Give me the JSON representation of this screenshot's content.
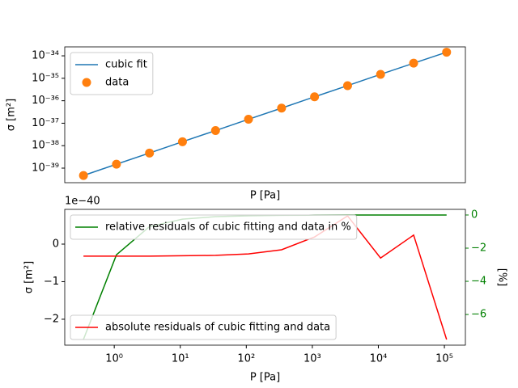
{
  "chart_data": [
    {
      "type": "line",
      "xscale": "log",
      "yscale": "log",
      "xlabel": "P [Pa]",
      "ylabel": "σ [m²]",
      "x": [
        0.342,
        1.08,
        3.42,
        10.8,
        34.2,
        108,
        342,
        1080,
        3420,
        10800,
        34200,
        108000
      ],
      "series": [
        {
          "name": "cubic fit",
          "color": "#1f77b4",
          "mark": "line",
          "legend": "upper left",
          "values": [
            4.7e-40,
            1.5e-39,
            4.7e-39,
            1.5e-38,
            4.7e-38,
            1.5e-37,
            4.7e-37,
            1.5e-36,
            4.7e-36,
            1.5e-35,
            4.7e-35,
            1.45e-34
          ]
        },
        {
          "name": "data",
          "color": "#ff7f0e",
          "mark": "marker",
          "legend": "upper left",
          "values": [
            4.7e-40,
            1.5e-39,
            4.7e-39,
            1.5e-38,
            4.7e-38,
            1.5e-37,
            4.7e-37,
            1.5e-36,
            4.7e-36,
            1.5e-35,
            4.7e-35,
            1.45e-34
          ]
        }
      ],
      "xlim": [
        0.178,
        208000
      ],
      "ylim": [
        2.25e-40,
        2.5e-34
      ],
      "yticks": [
        {
          "value": 1e-39,
          "label": "10⁻³⁹"
        },
        {
          "value": 1e-38,
          "label": "10⁻³⁸"
        },
        {
          "value": 1e-37,
          "label": "10⁻³⁷"
        },
        {
          "value": 1e-36,
          "label": "10⁻³⁶"
        },
        {
          "value": 1e-35,
          "label": "10⁻³⁵"
        },
        {
          "value": 1e-34,
          "label": "10⁻³⁴"
        }
      ]
    },
    {
      "type": "line",
      "xscale": "log",
      "xlabel": "P [Pa]",
      "ylabel": "σ [m²]",
      "y2label": "[%]",
      "y_offset_text": "1e−40",
      "y2tick_color": "green",
      "x": [
        0.342,
        1.08,
        3.42,
        10.8,
        34.2,
        108,
        342,
        1080,
        3420,
        10800,
        34200,
        108000
      ],
      "series": [
        {
          "name": "relative residuals of cubic fitting and data in %",
          "color": "green",
          "mark": "line",
          "axis": "y2",
          "legend": "upper left",
          "values": [
            -7.5,
            -2.4,
            -0.7,
            -0.25,
            -0.1,
            -0.05,
            -0.02,
            -0.01,
            0,
            0,
            0,
            0
          ]
        },
        {
          "name": "absolute residuals of cubic fitting and data",
          "color": "red",
          "mark": "line",
          "legend": "lower left",
          "values": [
            -0.32,
            -0.32,
            -0.32,
            -0.31,
            -0.3,
            -0.26,
            -0.15,
            0.19,
            0.75,
            -0.37,
            0.24,
            -2.54
          ]
        }
      ],
      "xlim": [
        0.178,
        208000
      ],
      "ylim": [
        -2.69,
        0.925
      ],
      "y2lim": [
        -7.85,
        0.34
      ],
      "xticks": [
        {
          "value": 1,
          "label": "10⁰"
        },
        {
          "value": 10,
          "label": "10¹"
        },
        {
          "value": 100,
          "label": "10²"
        },
        {
          "value": 1000,
          "label": "10³"
        },
        {
          "value": 10000,
          "label": "10⁴"
        },
        {
          "value": 100000,
          "label": "10⁵"
        }
      ],
      "yticks": [
        {
          "value": -2,
          "label": "−2"
        },
        {
          "value": -1,
          "label": "−1"
        },
        0
      ],
      "y2ticks": [
        {
          "value": -6,
          "label": "−6"
        },
        {
          "value": -4,
          "label": "−4"
        },
        {
          "value": -2,
          "label": "−2"
        },
        0
      ]
    }
  ]
}
